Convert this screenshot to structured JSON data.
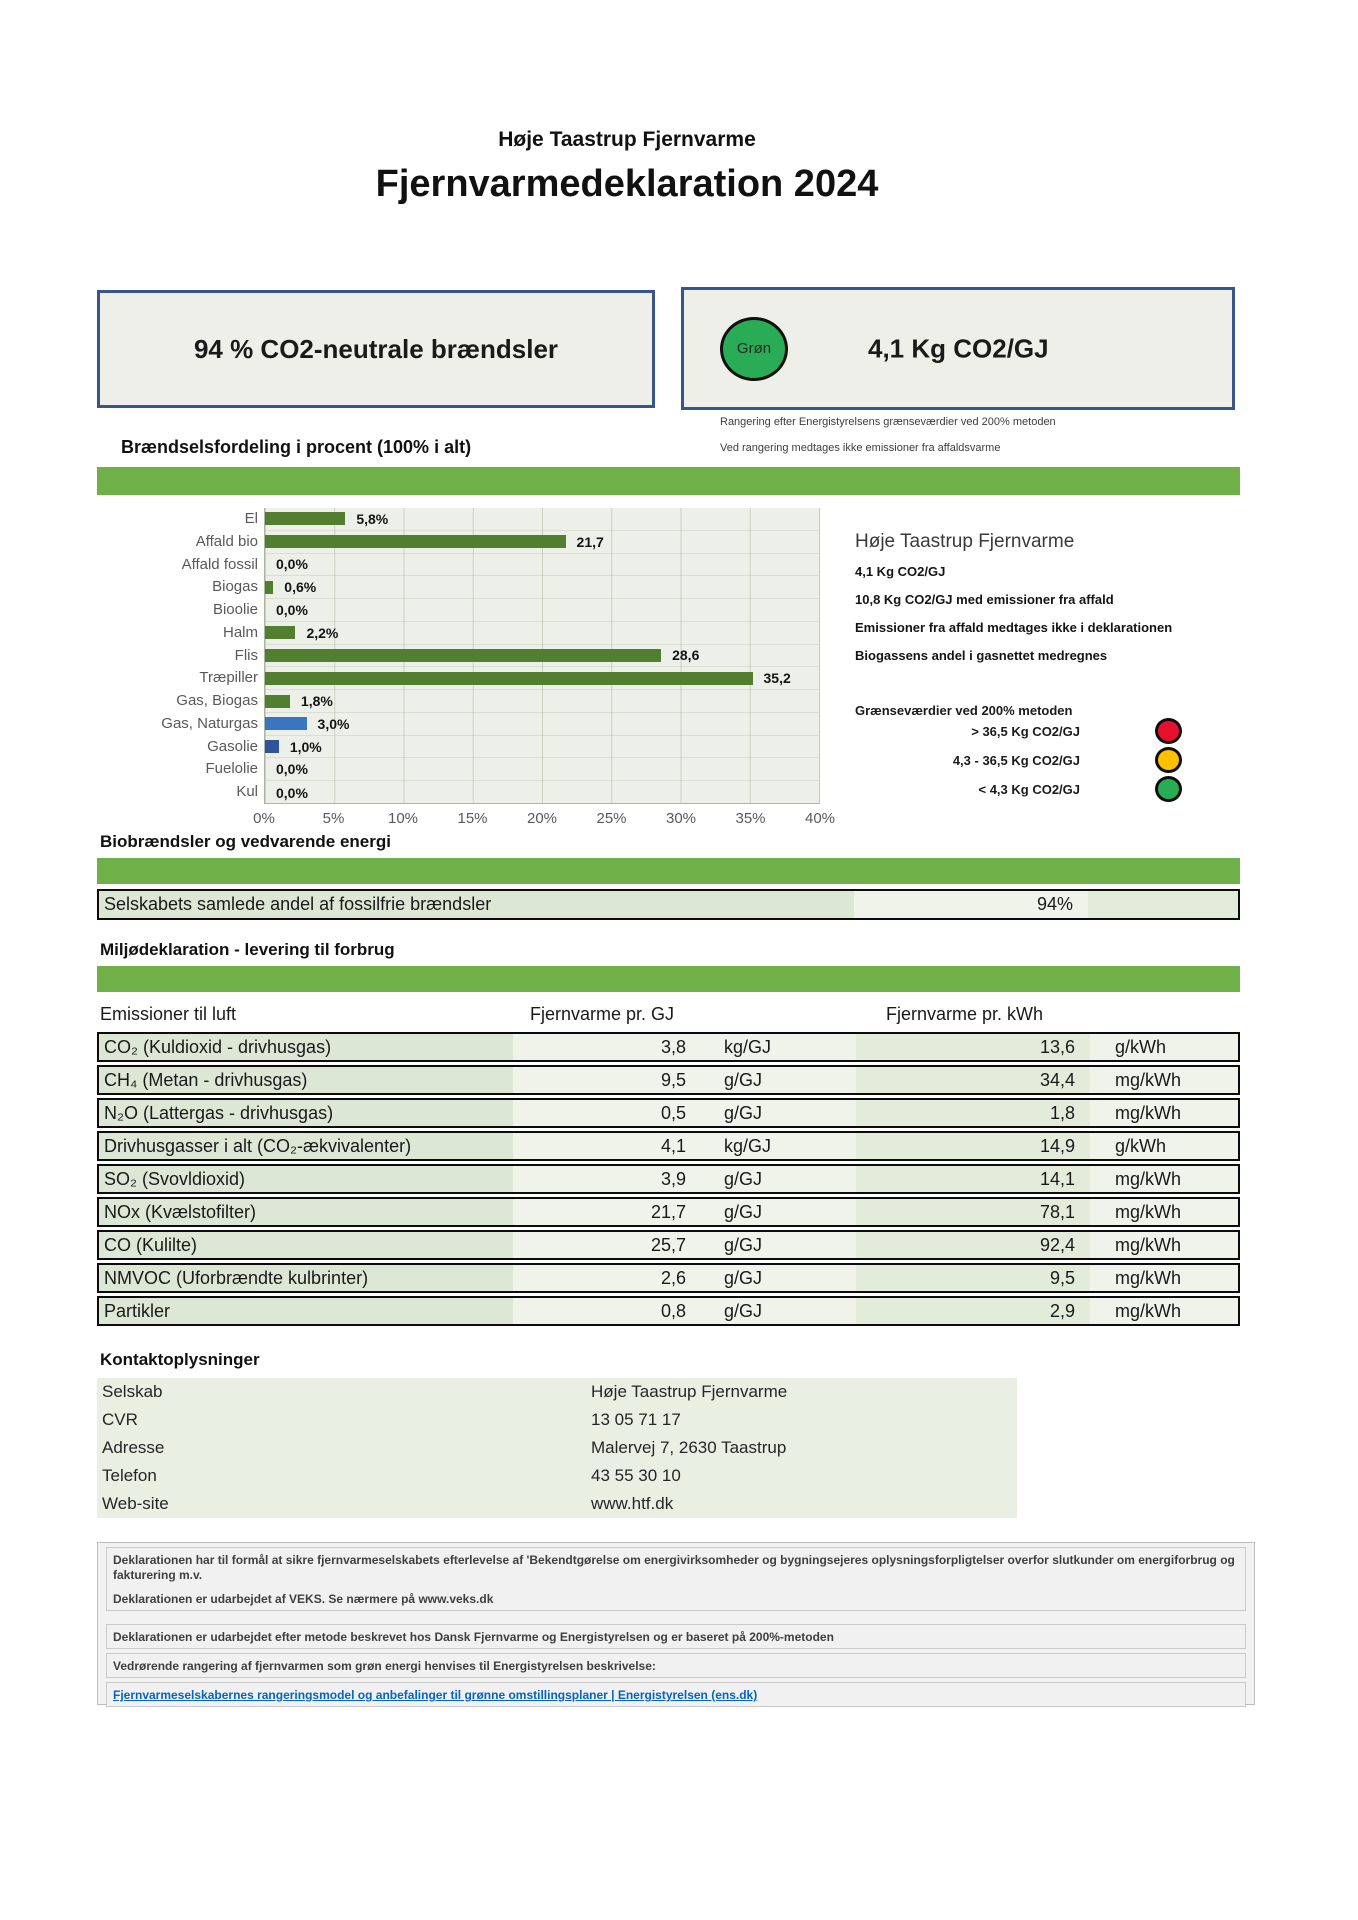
{
  "header": {
    "org": "Høje Taastrup Fjernvarme",
    "title": "Fjernvarmedeklaration 2024"
  },
  "summary": {
    "left_box_label": "94 % CO2-neutrale brændsler",
    "badge_label": "Grøn",
    "right_box_value": "4,1 Kg CO2/GJ",
    "notes": [
      "Rangering efter Energistyrelsens grænseværdier ved 200% metoden",
      "Ved rangering medtages ikke emissioner fra affaldsvarme"
    ]
  },
  "fuel_section": {
    "title": "Brændselsfordeling i procent (100% i alt)"
  },
  "chart_data": {
    "type": "bar",
    "orientation": "horizontal",
    "title": "Brændselsfordeling i procent (100% i alt)",
    "categories": [
      "El",
      "Affald bio",
      "Affald fossil",
      "Biogas",
      "Bioolie",
      "Halm",
      "Flis",
      "Træpiller",
      "Gas, Biogas",
      "Gas, Naturgas",
      "Gasolie",
      "Fuelolie",
      "Kul"
    ],
    "values": [
      5.8,
      21.7,
      0.0,
      0.6,
      0.0,
      2.2,
      28.6,
      35.2,
      1.8,
      3.0,
      1.0,
      0.0,
      0.0
    ],
    "display_values": [
      "5,8%",
      "21,7",
      "0,0%",
      "0,6%",
      "0,0%",
      "2,2%",
      "28,6",
      "35,2",
      "1,8%",
      "3,0%",
      "1,0%",
      "0,0%",
      "0,0%"
    ],
    "bar_colors": [
      "#527e2f",
      "#527e2f",
      "#527e2f",
      "#527e2f",
      "#527e2f",
      "#527e2f",
      "#527e2f",
      "#527e2f",
      "#527e2f",
      "#3a76c0",
      "#2e5597",
      "#527e2f",
      "#527e2f"
    ],
    "xlim": [
      0,
      40
    ],
    "x_ticks": [
      "0%",
      "5%",
      "10%",
      "15%",
      "20%",
      "25%",
      "30%",
      "35%",
      "40%"
    ],
    "grid": true,
    "plot_background": "#edf0e8"
  },
  "info_panel": {
    "title": "Høje Taastrup Fjernvarme",
    "lines": [
      "4,1 Kg CO2/GJ",
      "10,8 Kg CO2/GJ med emissioner fra affald",
      "Emissioner fra affald medtages ikke i deklarationen",
      "Biogassens andel i gasnettet medregnes"
    ],
    "thresholds_title": "Grænseværdier ved 200% metoden",
    "thresholds": [
      {
        "label": "> 36,5 Kg CO2/GJ",
        "color": "#e8112d"
      },
      {
        "label": "4,3 - 36,5 Kg CO2/GJ",
        "color": "#ffc000"
      },
      {
        "label": "< 4,3 Kg CO2/GJ",
        "color": "#27ae55"
      }
    ]
  },
  "bio_section": {
    "title": "Biobrændsler og vedvarende energi",
    "row_label": "Selskabets samlede andel af fossilfrie brændsler",
    "row_value": "94%"
  },
  "emissions": {
    "title": "Miljødeklaration - levering til forbrug",
    "col_headers": [
      "Emissioner til luft",
      "Fjernvarme pr. GJ",
      "Fjernvarme pr. kWh"
    ],
    "rows": [
      {
        "name": "CO₂ (Kuldioxid - drivhusgas)",
        "gj_value": "3,8",
        "gj_unit": "kg/GJ",
        "kwh_value": "13,6",
        "kwh_unit": "g/kWh"
      },
      {
        "name": "CH₄ (Metan - drivhusgas)",
        "gj_value": "9,5",
        "gj_unit": "g/GJ",
        "kwh_value": "34,4",
        "kwh_unit": "mg/kWh"
      },
      {
        "name": "N₂O (Lattergas - drivhusgas)",
        "gj_value": "0,5",
        "gj_unit": "g/GJ",
        "kwh_value": "1,8",
        "kwh_unit": "mg/kWh"
      },
      {
        "name": "Drivhusgasser i alt (CO₂-ækvivalenter)",
        "gj_value": "4,1",
        "gj_unit": "kg/GJ",
        "kwh_value": "14,9",
        "kwh_unit": "g/kWh"
      },
      {
        "name": "SO₂ (Svovldioxid)",
        "gj_value": "3,9",
        "gj_unit": "g/GJ",
        "kwh_value": "14,1",
        "kwh_unit": "mg/kWh"
      },
      {
        "name": "NOx (Kvælstofilter)",
        "gj_value": "21,7",
        "gj_unit": "g/GJ",
        "kwh_value": "78,1",
        "kwh_unit": "mg/kWh"
      },
      {
        "name": "CO (Kulilte)",
        "gj_value": "25,7",
        "gj_unit": "g/GJ",
        "kwh_value": "92,4",
        "kwh_unit": "mg/kWh"
      },
      {
        "name": "NMVOC (Uforbrændte kulbrinter)",
        "gj_value": "2,6",
        "gj_unit": "g/GJ",
        "kwh_value": "9,5",
        "kwh_unit": "mg/kWh"
      },
      {
        "name": "Partikler",
        "gj_value": "0,8",
        "gj_unit": "g/GJ",
        "kwh_value": "2,9",
        "kwh_unit": "mg/kWh"
      }
    ]
  },
  "contact": {
    "title": "Kontaktoplysninger",
    "rows": [
      {
        "label": "Selskab",
        "value": "Høje Taastrup Fjernvarme"
      },
      {
        "label": "CVR",
        "value": "13 05 71 17"
      },
      {
        "label": "Adresse",
        "value": "Malervej 7, 2630 Taastrup"
      },
      {
        "label": "Telefon",
        "value": "43 55 30 10"
      },
      {
        "label": "Web-site",
        "value": "www.htf.dk"
      }
    ]
  },
  "footer": {
    "line1": "Deklarationen har til formål at sikre fjernvarmeselskabets efterlevelse af 'Bekendtgørelse om energivirksomheder og bygningsejeres oplysningsforpligtelser overfor slutkunder om energiforbrug og fakturering m.v.",
    "line2": "Deklarationen er udarbejdet af VEKS. Se nærmere på www.veks.dk",
    "line3": "Deklarationen er udarbejdet efter metode beskrevet hos Dansk Fjernvarme og Energistyrelsen og er baseret på 200%-metoden",
    "line4": "Vedrørende rangering af fjernvarmen som grøn energi henvises til Energistyrelsen beskrivelse:",
    "link": "Fjernvarmeselskabernes rangeringsmodel og anbefalinger til grønne omstillingsplaner | Energistyrelsen (ens.dk)"
  },
  "colors": {
    "section_bar_green": "#6fb148",
    "bar_green": "#527e2f",
    "bar_blue": "#3a76c0",
    "bar_navy": "#2e5597",
    "box_border_blue": "#39568c",
    "badge_green": "#29ac55",
    "status_red": "#e8112d",
    "status_amber": "#ffc000",
    "status_green": "#27ae55",
    "link_blue": "#0563c1"
  }
}
